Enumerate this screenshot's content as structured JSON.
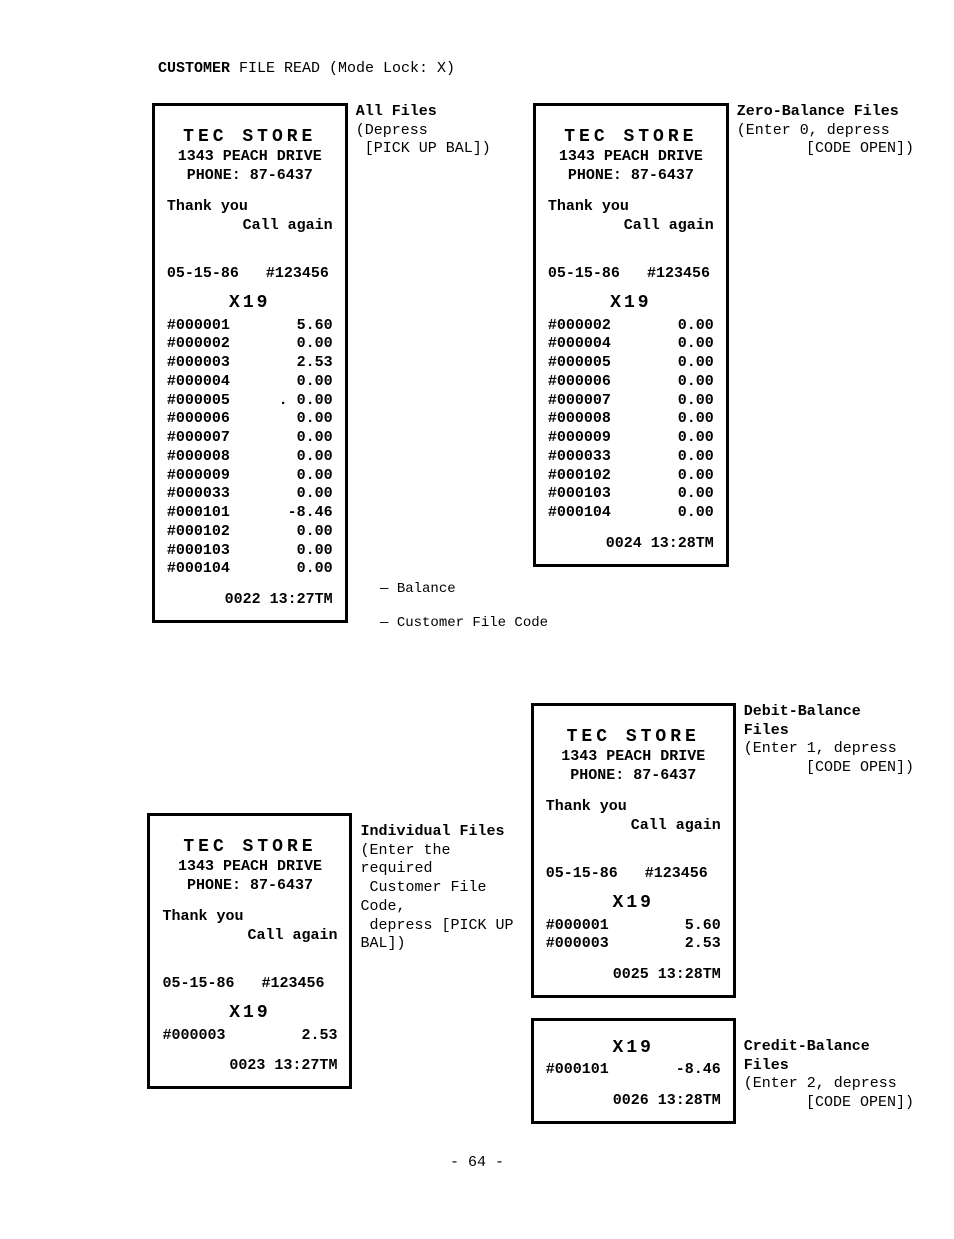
{
  "page_title_prefix": "CUSTOMER",
  "page_title_rest": " FILE READ (Mode Lock: X)",
  "store": {
    "name": "TEC STORE",
    "address": "1343 PEACH DRIVE",
    "phone": "PHONE: 87-6437",
    "thanks": "Thank you",
    "callagain": "Call again",
    "date": "05-15-86",
    "num": "#123456",
    "section": "X19"
  },
  "receipts": {
    "all": {
      "lines": [
        {
          "code": "#000001",
          "amt": "5.60"
        },
        {
          "code": "#000002",
          "amt": "0.00"
        },
        {
          "code": "#000003",
          "amt": "2.53"
        },
        {
          "code": "#000004",
          "amt": "0.00"
        },
        {
          "code": "#000005",
          "amt": ". 0.00"
        },
        {
          "code": "#000006",
          "amt": "0.00"
        },
        {
          "code": "#000007",
          "amt": "0.00"
        },
        {
          "code": "#000008",
          "amt": "0.00"
        },
        {
          "code": "#000009",
          "amt": "0.00"
        },
        {
          "code": "#000033",
          "amt": "0.00"
        },
        {
          "code": "#000101",
          "amt": "-8.46"
        },
        {
          "code": "#000102",
          "amt": "0.00"
        },
        {
          "code": "#000103",
          "amt": "0.00"
        },
        {
          "code": "#000104",
          "amt": "0.00"
        }
      ],
      "footer": "0022 13:27TM"
    },
    "zero": {
      "lines": [
        {
          "code": "#000002",
          "amt": "0.00"
        },
        {
          "code": "#000004",
          "amt": "0.00"
        },
        {
          "code": "#000005",
          "amt": "0.00"
        },
        {
          "code": "#000006",
          "amt": "0.00"
        },
        {
          "code": "#000007",
          "amt": "0.00"
        },
        {
          "code": "#000008",
          "amt": "0.00"
        },
        {
          "code": "#000009",
          "amt": "0.00"
        },
        {
          "code": "#000033",
          "amt": "0.00"
        },
        {
          "code": "#000102",
          "amt": "0.00"
        },
        {
          "code": "#000103",
          "amt": "0.00"
        },
        {
          "code": "#000104",
          "amt": "0.00"
        }
      ],
      "footer": "0024 13:28TM"
    },
    "individual": {
      "lines": [
        {
          "code": "#000003",
          "amt": "2.53"
        }
      ],
      "footer": "0023 13:27TM"
    },
    "debit": {
      "lines": [
        {
          "code": "#000001",
          "amt": "5.60"
        },
        {
          "code": "#000003",
          "amt": "2.53"
        }
      ],
      "footer": "0025 13:28TM"
    },
    "credit": {
      "lines": [
        {
          "code": "#000101",
          "amt": "-8.46"
        }
      ],
      "footer": "0026 13:28TM"
    }
  },
  "labels": {
    "all_files_hd": "All Files",
    "all_files_l1": "(Depress",
    "all_files_l2": "[PICK UP BAL])",
    "zero_hd": "Zero-Balance Files",
    "zero_l1": "(Enter 0, depress",
    "zero_l2": "[CODE OPEN])",
    "balance": "Balance",
    "cust_code": "Customer File Code",
    "indiv_hd": "Individual Files",
    "indiv_l1": "(Enter the required",
    "indiv_l2": "Customer File Code,",
    "indiv_l3": "depress [PICK UP BAL])",
    "debit_hd": "Debit-Balance Files",
    "debit_l1": "(Enter 1, depress",
    "debit_l2": "[CODE OPEN])",
    "credit_hd": "Credit-Balance Files",
    "credit_l1": "(Enter 2, depress",
    "credit_l2": "[CODE OPEN])"
  },
  "page_num": "- 64 -"
}
